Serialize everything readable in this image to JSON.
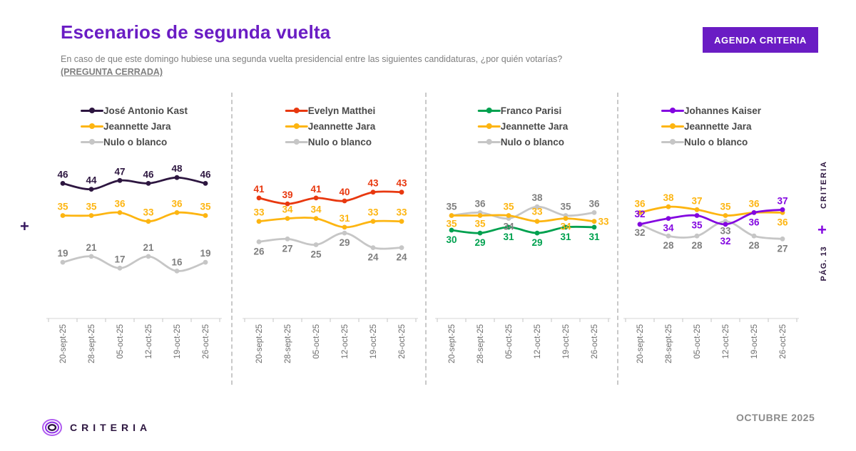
{
  "header": {
    "title": "Escenarios de segunda vuelta",
    "subtitle": "En caso de que este domingo hubiese una segunda vuelta presidencial entre las siguientes candidaturas, ¿por quién votarías?",
    "subtitle_emphasis": "(PREGUNTA CERRADA)",
    "agenda_button": "AGENDA CRITERIA"
  },
  "decorations": {
    "left_plus": "+",
    "side_brand": "CRITERIA",
    "side_plus": "+",
    "side_page": "PÁG. 13"
  },
  "footer": {
    "brand": "CRITERIA",
    "brand_icon": "concentric-rings-logo",
    "period": "OCTUBRE 2025"
  },
  "colors": {
    "accent_purple": "#6a1cc4",
    "kast": "#2d1640",
    "matthei": "#e8380f",
    "parisi": "#00a14f",
    "kaiser": "#8306e0",
    "jara": "#fdb511",
    "nulo_line": "#c6c6c6",
    "nulo_label": "#7f7f7f"
  },
  "chart_data": [
    {
      "id": "kast",
      "type": "line",
      "categories": [
        "20-sept-25",
        "28-sept-25",
        "05-oct-25",
        "12-oct-25",
        "19-oct-25",
        "26-oct-25"
      ],
      "ylim": [
        0,
        52
      ],
      "legend_position": "top",
      "series": [
        {
          "name": "José Antonio Kast",
          "color": "#2d1640",
          "label_color": "#2d1640",
          "values": [
            46,
            44,
            47,
            46,
            48,
            46
          ],
          "label_offsets": [
            [
              0,
              -8
            ],
            [
              0,
              -8
            ],
            [
              0,
              -8
            ],
            [
              0,
              -8
            ],
            [
              0,
              -8
            ],
            [
              0,
              -8
            ]
          ]
        },
        {
          "name": "Jeannette Jara",
          "color": "#fdb511",
          "label_color": "#fdb511",
          "values": [
            35,
            35,
            36,
            33,
            36,
            35
          ],
          "label_offsets": [
            [
              0,
              -8
            ],
            [
              0,
              -8
            ],
            [
              0,
              -8
            ],
            [
              0,
              -8
            ],
            [
              0,
              -8
            ],
            [
              0,
              -8
            ]
          ]
        },
        {
          "name": "Nulo o blanco",
          "color": "#c6c6c6",
          "label_color": "#7f7f7f",
          "values": [
            19,
            21,
            17,
            21,
            16,
            19
          ],
          "label_offsets": [
            [
              0,
              -8
            ],
            [
              0,
              -8
            ],
            [
              0,
              -8
            ],
            [
              0,
              -8
            ],
            [
              0,
              -8
            ],
            [
              0,
              -8
            ]
          ]
        }
      ]
    },
    {
      "id": "matthei",
      "type": "line",
      "categories": [
        "20-sept-25",
        "28-sept-25",
        "05-oct-25",
        "12-oct-25",
        "19-oct-25",
        "26-oct-25"
      ],
      "ylim": [
        0,
        52
      ],
      "legend_position": "top",
      "series": [
        {
          "name": "Evelyn Matthei",
          "color": "#e8380f",
          "label_color": "#e8380f",
          "values": [
            41,
            39,
            41,
            40,
            43,
            43
          ],
          "label_offsets": [
            [
              0,
              -8
            ],
            [
              0,
              -8
            ],
            [
              0,
              -8
            ],
            [
              0,
              -8
            ],
            [
              0,
              -8
            ],
            [
              0,
              -8
            ]
          ]
        },
        {
          "name": "Jeannette Jara",
          "color": "#fdb511",
          "label_color": "#fdb511",
          "values": [
            33,
            34,
            34,
            31,
            33,
            33
          ],
          "label_offsets": [
            [
              0,
              -8
            ],
            [
              0,
              -8
            ],
            [
              0,
              -8
            ],
            [
              0,
              -8
            ],
            [
              0,
              -8
            ],
            [
              0,
              -8
            ]
          ]
        },
        {
          "name": "Nulo o blanco",
          "color": "#c6c6c6",
          "label_color": "#7f7f7f",
          "values": [
            26,
            27,
            25,
            29,
            24,
            24
          ],
          "label_offsets": [
            [
              0,
              18
            ],
            [
              0,
              18
            ],
            [
              0,
              18
            ],
            [
              0,
              18
            ],
            [
              0,
              18
            ],
            [
              0,
              18
            ]
          ]
        }
      ]
    },
    {
      "id": "parisi",
      "type": "line",
      "categories": [
        "20-sept-25",
        "28-sept-25",
        "05-oct-25",
        "12-oct-25",
        "19-oct-25",
        "26-oct-25"
      ],
      "ylim": [
        0,
        52
      ],
      "legend_position": "top",
      "series": [
        {
          "name": "Franco Parisi",
          "color": "#00a14f",
          "label_color": "#00a14f",
          "values": [
            30,
            29,
            31,
            29,
            31,
            31
          ],
          "label_offsets": [
            [
              0,
              18
            ],
            [
              0,
              18
            ],
            [
              0,
              18
            ],
            [
              0,
              18
            ],
            [
              0,
              18
            ],
            [
              0,
              18
            ]
          ]
        },
        {
          "name": "Jeannette Jara",
          "color": "#fdb511",
          "label_color": "#fdb511",
          "values": [
            35,
            35,
            35,
            33,
            34,
            33
          ],
          "label_offsets": [
            [
              0,
              16
            ],
            [
              0,
              16
            ],
            [
              0,
              -8
            ],
            [
              0,
              -9
            ],
            [
              0,
              16
            ],
            [
              13,
              5
            ]
          ]
        },
        {
          "name": "Nulo o blanco",
          "color": "#c6c6c6",
          "label_color": "#7f7f7f",
          "values": [
            35,
            36,
            34,
            38,
            35,
            36
          ],
          "label_offsets": [
            [
              0,
              -8
            ],
            [
              0,
              -8
            ],
            [
              0,
              16
            ],
            [
              0,
              -8
            ],
            [
              0,
              -8
            ],
            [
              0,
              -8
            ]
          ]
        }
      ]
    },
    {
      "id": "kaiser",
      "type": "line",
      "categories": [
        "20-sept-25",
        "28-sept-25",
        "05-oct-25",
        "12-oct-25",
        "19-oct-25",
        "26-oct-25"
      ],
      "ylim": [
        0,
        52
      ],
      "legend_position": "top",
      "series": [
        {
          "name": "Johannes Kaiser",
          "color": "#8306e0",
          "label_color": "#8306e0",
          "values": [
            32,
            34,
            35,
            32,
            36,
            37
          ],
          "label_offsets": [
            [
              0,
              -10
            ],
            [
              0,
              18
            ],
            [
              0,
              18
            ],
            [
              0,
              28
            ],
            [
              0,
              18
            ],
            [
              0,
              -8
            ]
          ]
        },
        {
          "name": "Jeannette Jara",
          "color": "#fdb511",
          "label_color": "#fdb511",
          "values": [
            36,
            38,
            37,
            35,
            36,
            36
          ],
          "label_offsets": [
            [
              0,
              -8
            ],
            [
              0,
              -8
            ],
            [
              0,
              -8
            ],
            [
              0,
              -8
            ],
            [
              0,
              -8
            ],
            [
              0,
              18
            ]
          ]
        },
        {
          "name": "Nulo o blanco",
          "color": "#c6c6c6",
          "label_color": "#7f7f7f",
          "values": [
            32,
            28,
            28,
            33,
            28,
            27
          ],
          "label_offsets": [
            [
              0,
              16
            ],
            [
              0,
              18
            ],
            [
              0,
              18
            ],
            [
              0,
              18
            ],
            [
              0,
              18
            ],
            [
              0,
              18
            ]
          ]
        }
      ]
    }
  ]
}
